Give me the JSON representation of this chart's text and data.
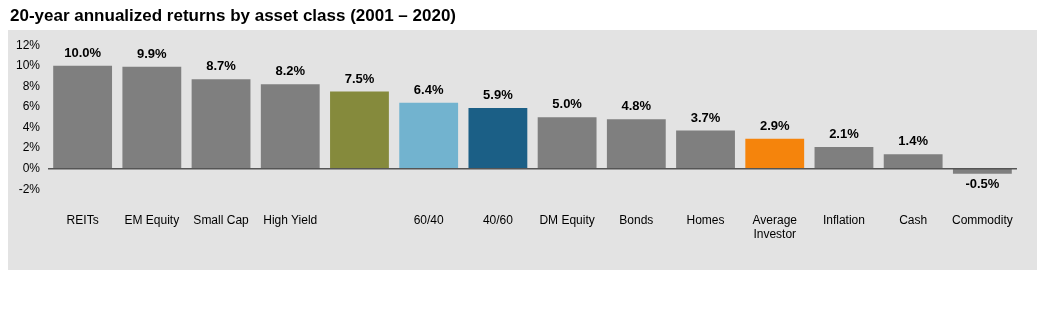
{
  "chart_data": {
    "type": "bar",
    "title": "20-year annualized returns by asset class (2001 – 2020)",
    "categories": [
      "REITs",
      "EM Equity",
      "Small Cap",
      "High Yield",
      null,
      "60/40",
      "40/60",
      "DM Equity",
      "Bonds",
      "Homes",
      "Average Investor",
      "Inflation",
      "Cash",
      "Commodity"
    ],
    "values": [
      10.0,
      9.9,
      8.7,
      8.2,
      7.5,
      6.4,
      5.9,
      5.0,
      4.8,
      3.7,
      2.9,
      2.1,
      1.4,
      -0.5
    ],
    "colors": [
      "#7f7f7f",
      "#7f7f7f",
      "#7f7f7f",
      "#7f7f7f",
      "#858a3c",
      "#72b3cf",
      "#1b5f86",
      "#7f7f7f",
      "#7f7f7f",
      "#7f7f7f",
      "#f5840c",
      "#7f7f7f",
      "#7f7f7f",
      "#7f7f7f"
    ],
    "value_labels": [
      "10.0%",
      "9.9%",
      "8.7%",
      "8.2%",
      "7.5%",
      "6.4%",
      "5.9%",
      "5.0%",
      "4.8%",
      "3.7%",
      "2.9%",
      "2.1%",
      "1.4%",
      "-0.5%"
    ],
    "ylim": [
      -2,
      12
    ],
    "yticks": [
      {
        "value": -2,
        "label": "-2%"
      },
      {
        "value": 0,
        "label": "0%"
      },
      {
        "value": 2,
        "label": "2%"
      },
      {
        "value": 4,
        "label": "4%"
      },
      {
        "value": 6,
        "label": "6%"
      },
      {
        "value": 8,
        "label": "8%"
      },
      {
        "value": 10,
        "label": "10%"
      },
      {
        "value": 12,
        "label": "12%"
      }
    ],
    "grid": false,
    "legend": false,
    "ref_lines": [
      {
        "axis": "y",
        "value": 0,
        "color": "#555555"
      }
    ]
  }
}
